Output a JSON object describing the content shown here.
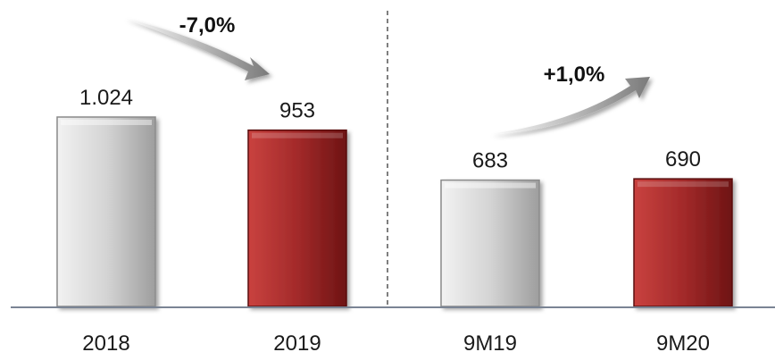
{
  "chart_data": {
    "type": "bar",
    "categories": [
      "2018",
      "2019",
      "9M19",
      "9M20"
    ],
    "values": [
      1024,
      953,
      683,
      690
    ],
    "value_labels": [
      "1.024",
      "953",
      "683",
      "690"
    ],
    "bar_colors": [
      "#c9c9c9",
      "#a32a2a",
      "#c9c9c9",
      "#a32a2a"
    ],
    "groups": [
      {
        "categories": [
          "2018",
          "2019"
        ],
        "change_label": "-7,0%",
        "arrow": "down"
      },
      {
        "categories": [
          "9M19",
          "9M20"
        ],
        "change_label": "+1,0%",
        "arrow": "up"
      }
    ],
    "group_divider": "dashed",
    "ylim": [
      0,
      1450
    ],
    "title": "",
    "xlabel": "",
    "ylabel": "",
    "grid": false,
    "legend": "none"
  }
}
